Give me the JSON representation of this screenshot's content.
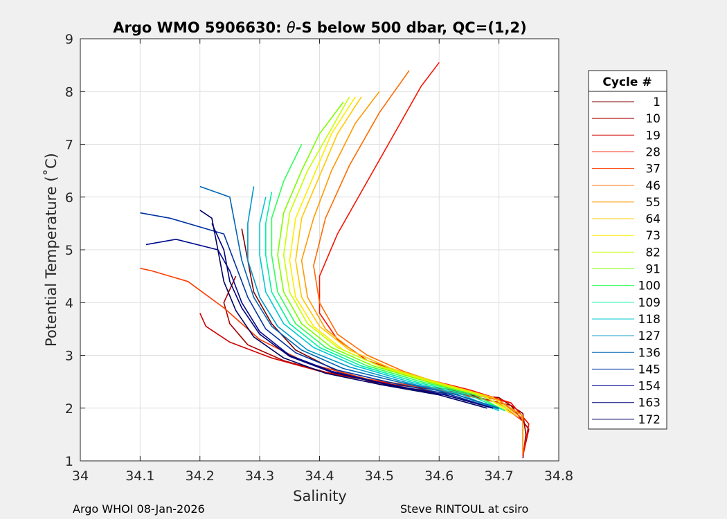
{
  "chart_data": {
    "type": "line",
    "title_prefix": "Argo WMO 5906630: ",
    "title_theta": "θ",
    "title_suffix": "-S below 500 dbar,  QC=(1,2)",
    "xlabel": "Salinity",
    "ylabel": "Potential Temperature (˚C)",
    "xlim": [
      34.0,
      34.8
    ],
    "ylim": [
      1,
      9
    ],
    "xticks": [
      34,
      34.1,
      34.2,
      34.3,
      34.4,
      34.5,
      34.6,
      34.7,
      34.8
    ],
    "xtick_labels": [
      "34",
      "34.1",
      "34.2",
      "34.3",
      "34.4",
      "34.5",
      "34.6",
      "34.7",
      "34.8"
    ],
    "yticks": [
      1,
      2,
      3,
      4,
      5,
      6,
      7,
      8,
      9
    ],
    "ytick_labels": [
      "1",
      "2",
      "3",
      "4",
      "5",
      "6",
      "7",
      "8",
      "9"
    ],
    "grid": true,
    "legend_title": "Cycle #",
    "legend_position": "outside-right",
    "series": [
      {
        "name": "1",
        "color": "#800000",
        "points": [
          [
            34.74,
            1.05
          ],
          [
            34.745,
            1.5
          ],
          [
            34.74,
            1.9
          ],
          [
            34.7,
            2.2
          ],
          [
            34.6,
            2.3
          ],
          [
            34.5,
            2.45
          ],
          [
            34.43,
            2.7
          ],
          [
            34.36,
            3.1
          ],
          [
            34.32,
            3.6
          ],
          [
            34.29,
            4.2
          ],
          [
            34.28,
            4.8
          ],
          [
            34.27,
            5.4
          ]
        ]
      },
      {
        "name": "10",
        "color": "#a60000",
        "points": [
          [
            34.74,
            1.1
          ],
          [
            34.75,
            1.6
          ],
          [
            34.72,
            2.05
          ],
          [
            34.63,
            2.3
          ],
          [
            34.52,
            2.45
          ],
          [
            34.42,
            2.65
          ],
          [
            34.34,
            2.9
          ],
          [
            34.28,
            3.2
          ],
          [
            34.25,
            3.6
          ],
          [
            34.24,
            4.0
          ],
          [
            34.26,
            4.5
          ]
        ]
      },
      {
        "name": "19",
        "color": "#d20000",
        "points": [
          [
            34.74,
            1.1
          ],
          [
            34.75,
            1.7
          ],
          [
            34.72,
            2.1
          ],
          [
            34.62,
            2.35
          ],
          [
            34.5,
            2.5
          ],
          [
            34.4,
            2.7
          ],
          [
            34.32,
            2.95
          ],
          [
            34.25,
            3.25
          ],
          [
            34.21,
            3.55
          ],
          [
            34.2,
            3.8
          ]
        ]
      },
      {
        "name": "28",
        "color": "#f51400",
        "points": [
          [
            34.74,
            1.1
          ],
          [
            34.75,
            1.7
          ],
          [
            34.72,
            2.1
          ],
          [
            34.65,
            2.35
          ],
          [
            34.56,
            2.6
          ],
          [
            34.48,
            2.9
          ],
          [
            34.43,
            3.3
          ],
          [
            34.4,
            3.8
          ],
          [
            34.4,
            4.5
          ],
          [
            34.43,
            5.3
          ],
          [
            34.48,
            6.3
          ],
          [
            34.53,
            7.3
          ],
          [
            34.57,
            8.1
          ],
          [
            34.6,
            8.55
          ]
        ]
      },
      {
        "name": "37",
        "color": "#ff3c00",
        "points": [
          [
            34.74,
            1.12
          ],
          [
            34.74,
            1.75
          ],
          [
            34.7,
            2.1
          ],
          [
            34.6,
            2.35
          ],
          [
            34.48,
            2.55
          ],
          [
            34.38,
            2.85
          ],
          [
            34.3,
            3.3
          ],
          [
            34.24,
            3.9
          ],
          [
            34.18,
            4.4
          ],
          [
            34.12,
            4.6
          ],
          [
            34.1,
            4.65
          ]
        ]
      },
      {
        "name": "46",
        "color": "#ff6b00",
        "points": [
          [
            34.74,
            1.12
          ],
          [
            34.74,
            1.8
          ],
          [
            34.7,
            2.15
          ],
          [
            34.62,
            2.4
          ],
          [
            34.54,
            2.7
          ],
          [
            34.48,
            3.0
          ],
          [
            34.43,
            3.4
          ],
          [
            34.4,
            4.0
          ],
          [
            34.39,
            4.7
          ],
          [
            34.41,
            5.6
          ],
          [
            34.45,
            6.6
          ],
          [
            34.5,
            7.6
          ],
          [
            34.55,
            8.4
          ]
        ]
      },
      {
        "name": "55",
        "color": "#ff9a00",
        "points": [
          [
            34.74,
            1.15
          ],
          [
            34.74,
            1.85
          ],
          [
            34.7,
            2.15
          ],
          [
            34.62,
            2.4
          ],
          [
            34.53,
            2.7
          ],
          [
            34.46,
            3.05
          ],
          [
            34.41,
            3.5
          ],
          [
            34.38,
            4.1
          ],
          [
            34.37,
            4.8
          ],
          [
            34.39,
            5.6
          ],
          [
            34.42,
            6.5
          ],
          [
            34.46,
            7.4
          ],
          [
            34.5,
            8.0
          ]
        ]
      },
      {
        "name": "64",
        "color": "#ffc800",
        "points": [
          [
            34.73,
            1.85
          ],
          [
            34.69,
            2.2
          ],
          [
            34.61,
            2.45
          ],
          [
            34.52,
            2.75
          ],
          [
            34.45,
            3.1
          ],
          [
            34.4,
            3.55
          ],
          [
            34.37,
            4.1
          ],
          [
            34.36,
            4.8
          ],
          [
            34.37,
            5.6
          ],
          [
            34.4,
            6.4
          ],
          [
            34.43,
            7.2
          ],
          [
            34.47,
            7.9
          ]
        ]
      },
      {
        "name": "73",
        "color": "#ffee00",
        "points": [
          [
            34.72,
            1.9
          ],
          [
            34.68,
            2.2
          ],
          [
            34.6,
            2.45
          ],
          [
            34.51,
            2.75
          ],
          [
            34.44,
            3.1
          ],
          [
            34.39,
            3.55
          ],
          [
            34.36,
            4.1
          ],
          [
            34.35,
            4.8
          ],
          [
            34.36,
            5.6
          ],
          [
            34.39,
            6.4
          ],
          [
            34.42,
            7.2
          ],
          [
            34.46,
            7.9
          ]
        ]
      },
      {
        "name": "82",
        "color": "#c8ff00",
        "points": [
          [
            34.72,
            1.95
          ],
          [
            34.67,
            2.25
          ],
          [
            34.59,
            2.5
          ],
          [
            34.5,
            2.8
          ],
          [
            34.43,
            3.15
          ],
          [
            34.38,
            3.6
          ],
          [
            34.35,
            4.2
          ],
          [
            34.34,
            4.9
          ],
          [
            34.35,
            5.7
          ],
          [
            34.38,
            6.5
          ],
          [
            34.42,
            7.3
          ],
          [
            34.45,
            7.9
          ]
        ]
      },
      {
        "name": "91",
        "color": "#7dff00",
        "points": [
          [
            34.71,
            1.95
          ],
          [
            34.66,
            2.25
          ],
          [
            34.58,
            2.5
          ],
          [
            34.49,
            2.8
          ],
          [
            34.42,
            3.15
          ],
          [
            34.37,
            3.6
          ],
          [
            34.34,
            4.2
          ],
          [
            34.33,
            4.9
          ],
          [
            34.34,
            5.7
          ],
          [
            34.37,
            6.5
          ],
          [
            34.4,
            7.2
          ],
          [
            34.44,
            7.8
          ]
        ]
      },
      {
        "name": "100",
        "color": "#2eff5a",
        "points": [
          [
            34.71,
            1.95
          ],
          [
            34.66,
            2.25
          ],
          [
            34.57,
            2.5
          ],
          [
            34.48,
            2.8
          ],
          [
            34.41,
            3.15
          ],
          [
            34.36,
            3.6
          ],
          [
            34.33,
            4.2
          ],
          [
            34.32,
            4.9
          ],
          [
            34.32,
            5.6
          ],
          [
            34.34,
            6.3
          ],
          [
            34.37,
            7.0
          ]
        ]
      },
      {
        "name": "109",
        "color": "#00f2a0",
        "points": [
          [
            34.71,
            1.95
          ],
          [
            34.65,
            2.25
          ],
          [
            34.56,
            2.5
          ],
          [
            34.47,
            2.8
          ],
          [
            34.4,
            3.15
          ],
          [
            34.35,
            3.6
          ],
          [
            34.32,
            4.2
          ],
          [
            34.31,
            4.9
          ],
          [
            34.31,
            5.5
          ],
          [
            34.32,
            6.1
          ]
        ]
      },
      {
        "name": "118",
        "color": "#00c8d2",
        "points": [
          [
            34.7,
            1.95
          ],
          [
            34.64,
            2.25
          ],
          [
            34.55,
            2.5
          ],
          [
            34.46,
            2.8
          ],
          [
            34.39,
            3.15
          ],
          [
            34.34,
            3.6
          ],
          [
            34.31,
            4.2
          ],
          [
            34.3,
            4.9
          ],
          [
            34.3,
            5.5
          ],
          [
            34.31,
            6.0
          ]
        ]
      },
      {
        "name": "127",
        "color": "#0096c8",
        "points": [
          [
            34.7,
            1.98
          ],
          [
            34.63,
            2.25
          ],
          [
            34.54,
            2.5
          ],
          [
            34.45,
            2.78
          ],
          [
            34.38,
            3.1
          ],
          [
            34.33,
            3.55
          ],
          [
            34.3,
            4.1
          ],
          [
            34.28,
            4.8
          ],
          [
            34.28,
            5.5
          ],
          [
            34.29,
            6.2
          ]
        ]
      },
      {
        "name": "136",
        "color": "#0064b4",
        "points": [
          [
            34.7,
            2.0
          ],
          [
            34.63,
            2.25
          ],
          [
            34.53,
            2.5
          ],
          [
            34.44,
            2.75
          ],
          [
            34.37,
            3.1
          ],
          [
            34.32,
            3.55
          ],
          [
            34.29,
            4.1
          ],
          [
            34.27,
            4.8
          ],
          [
            34.26,
            5.4
          ],
          [
            34.25,
            6.0
          ],
          [
            34.2,
            6.2
          ]
        ]
      },
      {
        "name": "145",
        "color": "#0032a0",
        "points": [
          [
            34.69,
            2.0
          ],
          [
            34.62,
            2.25
          ],
          [
            34.52,
            2.48
          ],
          [
            34.43,
            2.72
          ],
          [
            34.36,
            3.05
          ],
          [
            34.31,
            3.5
          ],
          [
            34.28,
            4.1
          ],
          [
            34.26,
            4.7
          ],
          [
            34.24,
            5.3
          ],
          [
            34.15,
            5.6
          ],
          [
            34.1,
            5.7
          ]
        ]
      },
      {
        "name": "154",
        "color": "#000a8c",
        "points": [
          [
            34.69,
            2.0
          ],
          [
            34.61,
            2.25
          ],
          [
            34.51,
            2.46
          ],
          [
            34.42,
            2.7
          ],
          [
            34.35,
            3.0
          ],
          [
            34.3,
            3.45
          ],
          [
            34.27,
            4.0
          ],
          [
            34.25,
            4.6
          ],
          [
            34.23,
            5.0
          ],
          [
            34.16,
            5.2
          ],
          [
            34.11,
            5.1
          ]
        ]
      },
      {
        "name": "163",
        "color": "#000078",
        "points": [
          [
            34.69,
            2.0
          ],
          [
            34.61,
            2.25
          ],
          [
            34.51,
            2.45
          ],
          [
            34.42,
            2.68
          ],
          [
            34.35,
            2.98
          ],
          [
            34.3,
            3.4
          ],
          [
            34.27,
            3.9
          ],
          [
            34.25,
            4.4
          ],
          [
            34.24,
            5.0
          ],
          [
            34.22,
            5.5
          ]
        ]
      },
      {
        "name": "172",
        "color": "#000064",
        "points": [
          [
            34.68,
            2.0
          ],
          [
            34.6,
            2.25
          ],
          [
            34.5,
            2.45
          ],
          [
            34.41,
            2.66
          ],
          [
            34.34,
            2.95
          ],
          [
            34.29,
            3.35
          ],
          [
            34.26,
            3.85
          ],
          [
            34.24,
            4.4
          ],
          [
            34.23,
            5.0
          ],
          [
            34.22,
            5.6
          ],
          [
            34.2,
            5.75
          ]
        ]
      }
    ]
  },
  "footer": {
    "left": "Argo WHOI 08-Jan-2026",
    "right": "Steve RINTOUL at csiro"
  }
}
